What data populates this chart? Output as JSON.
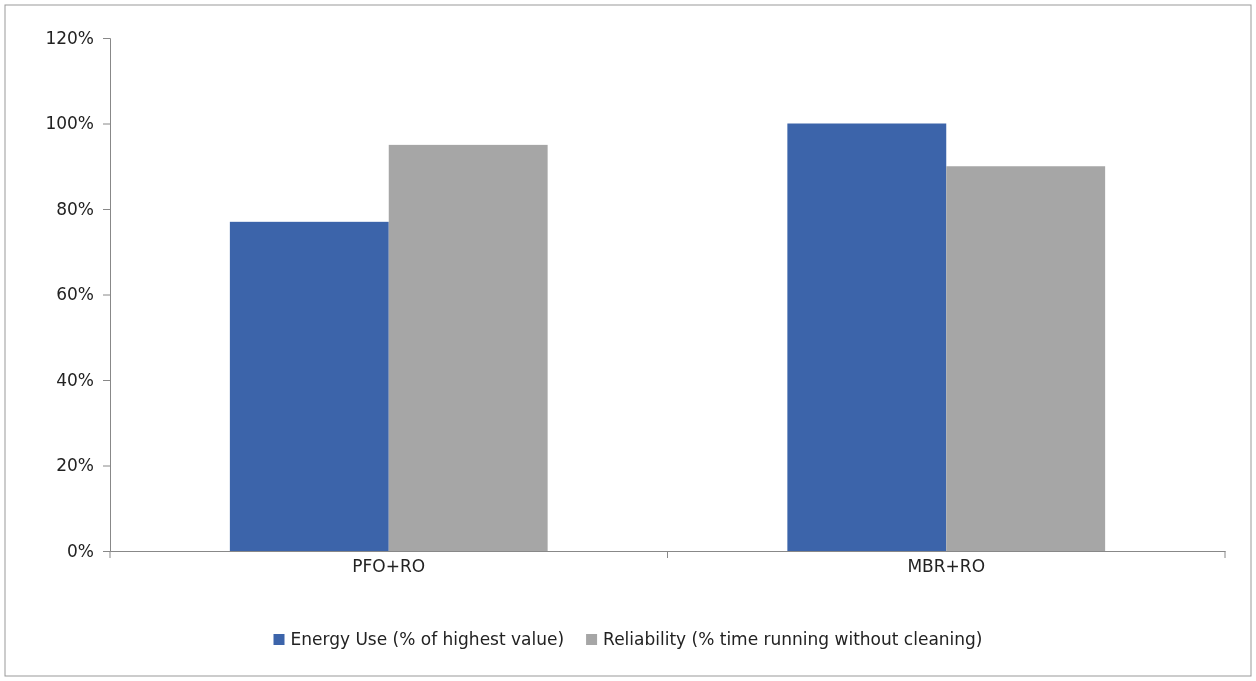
{
  "chart_data": {
    "type": "bar",
    "categories": [
      "PFO+RO",
      "MBR+RO"
    ],
    "series": [
      {
        "name": "Energy Use (% of highest value)",
        "color": "#3c64aa",
        "values": [
          77,
          100
        ]
      },
      {
        "name": "Reliability (% time running without cleaning)",
        "color": "#a6a6a6",
        "values": [
          95,
          90
        ]
      }
    ],
    "ylim": [
      0,
      120
    ],
    "yticks": [
      {
        "value": 0,
        "label": "0%"
      },
      {
        "value": 20,
        "label": "20%"
      },
      {
        "value": 40,
        "label": "40%"
      },
      {
        "value": 60,
        "label": "60%"
      },
      {
        "value": 80,
        "label": "80%"
      },
      {
        "value": 100,
        "label": "100%"
      },
      {
        "value": 120,
        "label": "120%"
      }
    ],
    "grid": false,
    "legend": "bottom"
  }
}
